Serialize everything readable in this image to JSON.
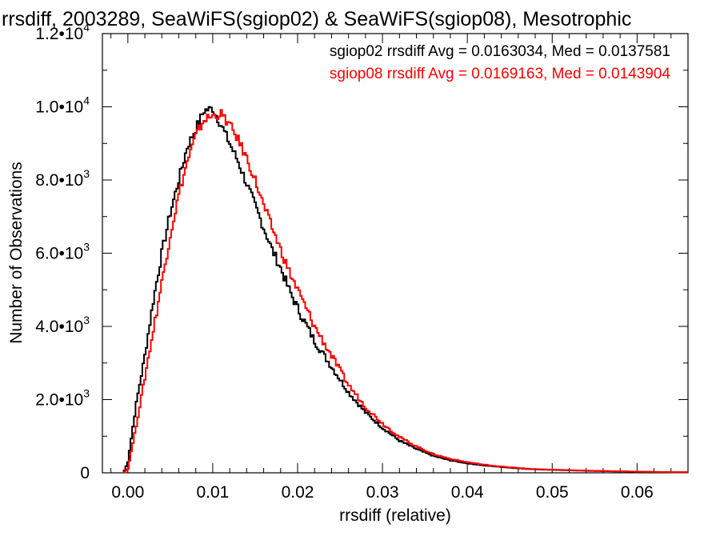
{
  "chart_data": {
    "type": "line",
    "title": "rrsdiff, 2003289, SeaWiFS(sgiop02) & SeaWiFS(sgiop08), Mesotrophic",
    "xlabel": "rrsdiff (relative)",
    "ylabel": "Number of Observations",
    "xlim": [
      -0.003,
      0.066
    ],
    "ylim": [
      0,
      12000
    ],
    "x_ticks": [
      {
        "value": 0.0,
        "label": "0.00"
      },
      {
        "value": 0.01,
        "label": "0.01"
      },
      {
        "value": 0.02,
        "label": "0.02"
      },
      {
        "value": 0.03,
        "label": "0.03"
      },
      {
        "value": 0.04,
        "label": "0.04"
      },
      {
        "value": 0.05,
        "label": "0.05"
      },
      {
        "value": 0.06,
        "label": "0.06"
      }
    ],
    "y_ticks": [
      {
        "value": 0,
        "mantissa": "0",
        "exponent": ""
      },
      {
        "value": 2000,
        "mantissa": "2.0•10",
        "exponent": "3"
      },
      {
        "value": 4000,
        "mantissa": "4.0•10",
        "exponent": "3"
      },
      {
        "value": 6000,
        "mantissa": "6.0•10",
        "exponent": "3"
      },
      {
        "value": 8000,
        "mantissa": "8.0•10",
        "exponent": "3"
      },
      {
        "value": 10000,
        "mantissa": "1.0•10",
        "exponent": "4"
      },
      {
        "value": 12000,
        "mantissa": "1.2•10",
        "exponent": "4"
      }
    ],
    "legend_placement": "top-right",
    "step_style": true,
    "series": [
      {
        "name": "sgiop02",
        "legend": "sgiop02 rrsdiff Avg = 0.0163034, Med = 0.0137581",
        "color": "#000000",
        "x": [
          -0.0005,
          0.0,
          0.001,
          0.002,
          0.003,
          0.004,
          0.005,
          0.006,
          0.007,
          0.008,
          0.009,
          0.01,
          0.011,
          0.012,
          0.013,
          0.014,
          0.015,
          0.016,
          0.017,
          0.018,
          0.019,
          0.02,
          0.022,
          0.024,
          0.026,
          0.028,
          0.03,
          0.032,
          0.034,
          0.036,
          0.038,
          0.04,
          0.042,
          0.044,
          0.046,
          0.048,
          0.05,
          0.055,
          0.06,
          0.065
        ],
        "y": [
          0,
          300,
          1900,
          3200,
          4700,
          6000,
          7100,
          8000,
          8900,
          9400,
          9900,
          9950,
          9500,
          9000,
          8500,
          7900,
          7300,
          6700,
          6100,
          5600,
          5000,
          4500,
          3600,
          2900,
          2200,
          1650,
          1230,
          880,
          650,
          460,
          340,
          260,
          200,
          160,
          120,
          95,
          80,
          50,
          30,
          15
        ]
      },
      {
        "name": "sgiop08",
        "legend": "sgiop08 rrsdiff Avg = 0.0169163, Med = 0.0143904",
        "color": "#ff0000",
        "x": [
          -0.0005,
          0.0,
          0.001,
          0.002,
          0.003,
          0.004,
          0.005,
          0.006,
          0.007,
          0.008,
          0.009,
          0.01,
          0.011,
          0.012,
          0.013,
          0.014,
          0.015,
          0.016,
          0.017,
          0.018,
          0.019,
          0.02,
          0.022,
          0.024,
          0.026,
          0.028,
          0.03,
          0.032,
          0.034,
          0.036,
          0.038,
          0.04,
          0.042,
          0.044,
          0.046,
          0.048,
          0.05,
          0.055,
          0.06,
          0.065
        ],
        "y": [
          0,
          100,
          1300,
          2600,
          3900,
          5200,
          6500,
          7600,
          8500,
          9200,
          9650,
          9750,
          9800,
          9500,
          9100,
          8600,
          8000,
          7300,
          6700,
          6100,
          5500,
          5000,
          4000,
          3200,
          2400,
          1800,
          1350,
          980,
          720,
          510,
          380,
          290,
          220,
          170,
          130,
          100,
          85,
          55,
          32,
          15
        ]
      }
    ]
  }
}
